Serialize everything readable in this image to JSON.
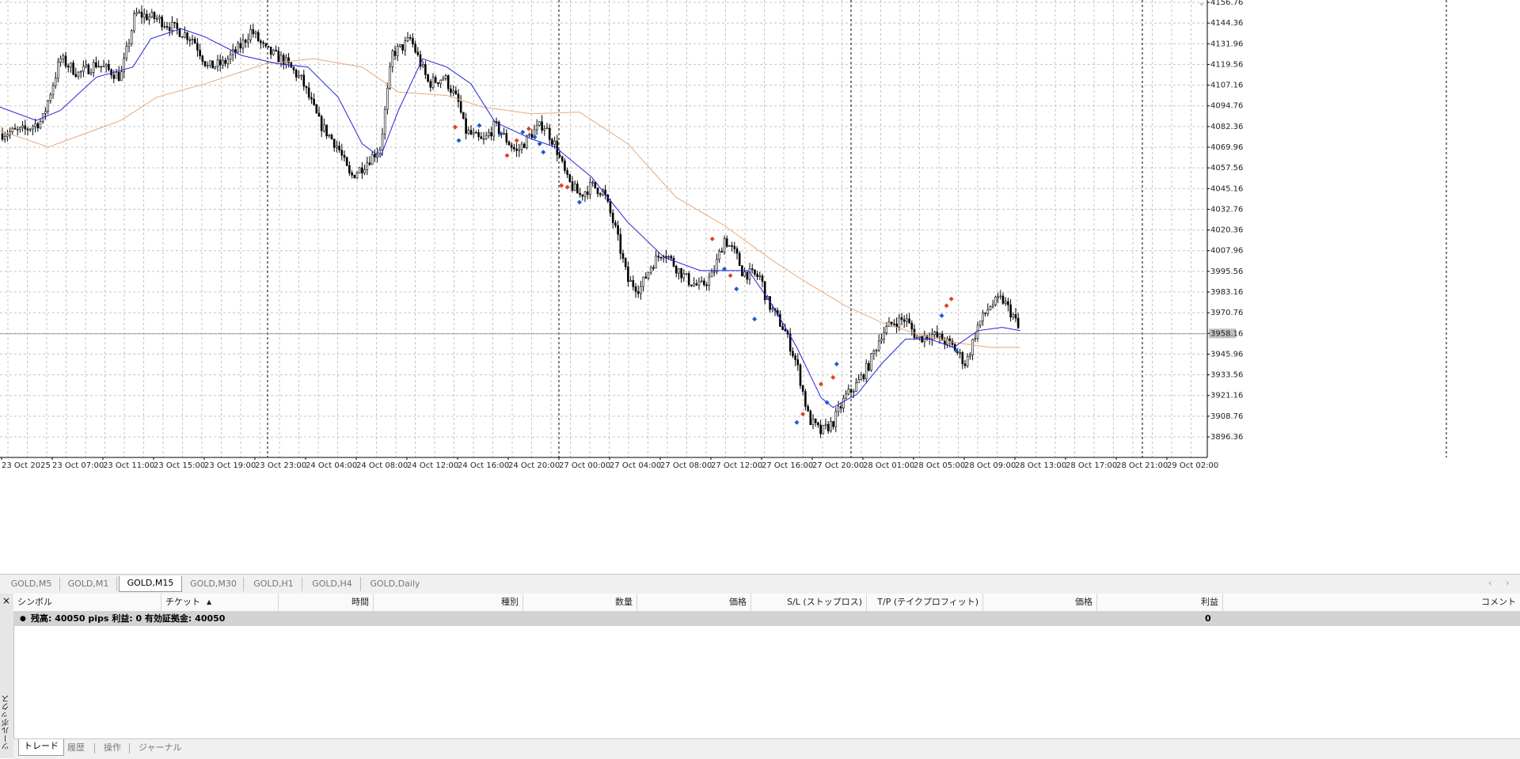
{
  "chart": {
    "symbol": "GOLD",
    "timeframe": "M15",
    "current_price_label": "3958.16",
    "y_axis_labels": [
      "4156.76",
      "4144.36",
      "4131.96",
      "4119.56",
      "4107.16",
      "4094.76",
      "4082.36",
      "4069.96",
      "4057.56",
      "4045.16",
      "4032.76",
      "4020.36",
      "4007.96",
      "3995.56",
      "3983.16",
      "3970.76",
      "3958.16",
      "3945.96",
      "3933.56",
      "3921.16",
      "3908.76",
      "3896.36"
    ],
    "x_axis_labels": [
      "23 Oct 2025",
      "23 Oct 07:00",
      "23 Oct 11:00",
      "23 Oct 15:00",
      "23 Oct 19:00",
      "23 Oct 23:00",
      "24 Oct 04:00",
      "24 Oct 08:00",
      "24 Oct 12:00",
      "24 Oct 16:00",
      "24 Oct 20:00",
      "27 Oct 00:00",
      "27 Oct 04:00",
      "27 Oct 08:00",
      "27 Oct 12:00",
      "27 Oct 16:00",
      "27 Oct 20:00",
      "28 Oct 01:00",
      "28 Oct 05:00",
      "28 Oct 09:00",
      "28 Oct 13:00",
      "28 Oct 17:00",
      "28 Oct 21:00",
      "29 Oct 02:00"
    ],
    "colors": {
      "candle": "#000000",
      "ma_fast": "#2222dd",
      "ma_slow": "#e8a878",
      "grid": "#c4c4c4",
      "buy_marker": "#1e5bcf",
      "sell_marker": "#e04020"
    },
    "price_path": [
      [
        0,
        4078
      ],
      [
        0.02,
        4080
      ],
      [
        0.035,
        4086
      ],
      [
        0.05,
        4123
      ],
      [
        0.065,
        4114
      ],
      [
        0.08,
        4120
      ],
      [
        0.1,
        4112
      ],
      [
        0.112,
        4150
      ],
      [
        0.13,
        4147
      ],
      [
        0.15,
        4139
      ],
      [
        0.16,
        4135
      ],
      [
        0.172,
        4118
      ],
      [
        0.185,
        4120
      ],
      [
        0.2,
        4131
      ],
      [
        0.208,
        4140
      ],
      [
        0.22,
        4128
      ],
      [
        0.235,
        4122
      ],
      [
        0.25,
        4110
      ],
      [
        0.265,
        4084
      ],
      [
        0.28,
        4070
      ],
      [
        0.29,
        4052
      ],
      [
        0.3,
        4058
      ],
      [
        0.315,
        4070
      ],
      [
        0.325,
        4126
      ],
      [
        0.335,
        4131
      ],
      [
        0.34,
        4135
      ],
      [
        0.355,
        4108
      ],
      [
        0.368,
        4112
      ],
      [
        0.38,
        4096
      ],
      [
        0.385,
        4080
      ],
      [
        0.4,
        4073
      ],
      [
        0.41,
        4083
      ],
      [
        0.42,
        4074
      ],
      [
        0.428,
        4067
      ],
      [
        0.44,
        4078
      ],
      [
        0.45,
        4084
      ],
      [
        0.46,
        4071
      ],
      [
        0.47,
        4050
      ],
      [
        0.48,
        4041
      ],
      [
        0.49,
        4047
      ],
      [
        0.5,
        4043
      ],
      [
        0.51,
        4020
      ],
      [
        0.52,
        3990
      ],
      [
        0.53,
        3985
      ],
      [
        0.54,
        4000
      ],
      [
        0.55,
        4008
      ],
      [
        0.56,
        3998
      ],
      [
        0.57,
        3990
      ],
      [
        0.58,
        3986
      ],
      [
        0.59,
        3993
      ],
      [
        0.6,
        4015
      ],
      [
        0.61,
        4005
      ],
      [
        0.615,
        3995
      ],
      [
        0.63,
        3992
      ],
      [
        0.635,
        3978
      ],
      [
        0.65,
        3960
      ],
      [
        0.66,
        3940
      ],
      [
        0.67,
        3907
      ],
      [
        0.68,
        3899
      ],
      [
        0.69,
        3905
      ],
      [
        0.7,
        3920
      ],
      [
        0.71,
        3928
      ],
      [
        0.72,
        3940
      ],
      [
        0.73,
        3958
      ],
      [
        0.74,
        3965
      ],
      [
        0.75,
        3967
      ],
      [
        0.76,
        3955
      ],
      [
        0.77,
        3958
      ],
      [
        0.78,
        3955
      ],
      [
        0.79,
        3950
      ],
      [
        0.8,
        3940
      ],
      [
        0.81,
        3963
      ],
      [
        0.82,
        3975
      ],
      [
        0.83,
        3979
      ],
      [
        0.84,
        3968
      ],
      [
        0.845,
        3958
      ]
    ],
    "ma_fast_path": [
      [
        0,
        4094
      ],
      [
        0.03,
        4086
      ],
      [
        0.05,
        4092
      ],
      [
        0.08,
        4112
      ],
      [
        0.11,
        4118
      ],
      [
        0.125,
        4135
      ],
      [
        0.15,
        4141
      ],
      [
        0.17,
        4136
      ],
      [
        0.2,
        4125
      ],
      [
        0.23,
        4120
      ],
      [
        0.255,
        4118
      ],
      [
        0.28,
        4100
      ],
      [
        0.3,
        4072
      ],
      [
        0.315,
        4064
      ],
      [
        0.33,
        4092
      ],
      [
        0.35,
        4123
      ],
      [
        0.37,
        4118
      ],
      [
        0.39,
        4108
      ],
      [
        0.41,
        4085
      ],
      [
        0.44,
        4075
      ],
      [
        0.46,
        4070
      ],
      [
        0.49,
        4052
      ],
      [
        0.52,
        4025
      ],
      [
        0.55,
        4004
      ],
      [
        0.58,
        3996
      ],
      [
        0.6,
        3996
      ],
      [
        0.62,
        3996
      ],
      [
        0.64,
        3975
      ],
      [
        0.66,
        3950
      ],
      [
        0.68,
        3920
      ],
      [
        0.69,
        3914
      ],
      [
        0.71,
        3922
      ],
      [
        0.73,
        3940
      ],
      [
        0.75,
        3955
      ],
      [
        0.77,
        3955
      ],
      [
        0.79,
        3950
      ],
      [
        0.81,
        3960
      ],
      [
        0.83,
        3962
      ],
      [
        0.845,
        3960
      ]
    ],
    "ma_slow_path": [
      [
        0,
        4080
      ],
      [
        0.04,
        4070
      ],
      [
        0.07,
        4078
      ],
      [
        0.1,
        4086
      ],
      [
        0.13,
        4100
      ],
      [
        0.17,
        4108
      ],
      [
        0.22,
        4120
      ],
      [
        0.26,
        4123
      ],
      [
        0.3,
        4118
      ],
      [
        0.33,
        4103
      ],
      [
        0.37,
        4101
      ],
      [
        0.4,
        4094
      ],
      [
        0.44,
        4090
      ],
      [
        0.48,
        4091
      ],
      [
        0.52,
        4072
      ],
      [
        0.56,
        4040
      ],
      [
        0.6,
        4023
      ],
      [
        0.64,
        4002
      ],
      [
        0.67,
        3988
      ],
      [
        0.7,
        3975
      ],
      [
        0.73,
        3965
      ],
      [
        0.76,
        3958
      ],
      [
        0.79,
        3953
      ],
      [
        0.82,
        3950
      ],
      [
        0.845,
        3950
      ]
    ],
    "trade_markers": [
      {
        "x": 0.377,
        "p": 4082,
        "t": "sell"
      },
      {
        "x": 0.38,
        "p": 4074,
        "t": "buy"
      },
      {
        "x": 0.397,
        "p": 4083,
        "t": "buy"
      },
      {
        "x": 0.415,
        "p": 4078,
        "t": "buy"
      },
      {
        "x": 0.42,
        "p": 4065,
        "t": "sell"
      },
      {
        "x": 0.428,
        "p": 4074,
        "t": "sell"
      },
      {
        "x": 0.433,
        "p": 4079,
        "t": "buy"
      },
      {
        "x": 0.438,
        "p": 4081,
        "t": "sell"
      },
      {
        "x": 0.443,
        "p": 4076,
        "t": "buy"
      },
      {
        "x": 0.447,
        "p": 4072,
        "t": "buy"
      },
      {
        "x": 0.45,
        "p": 4067,
        "t": "buy"
      },
      {
        "x": 0.465,
        "p": 4047,
        "t": "sell"
      },
      {
        "x": 0.47,
        "p": 4046,
        "t": "sell"
      },
      {
        "x": 0.48,
        "p": 4037,
        "t": "buy"
      },
      {
        "x": 0.59,
        "p": 4015,
        "t": "sell"
      },
      {
        "x": 0.6,
        "p": 3997,
        "t": "buy"
      },
      {
        "x": 0.605,
        "p": 3993,
        "t": "sell"
      },
      {
        "x": 0.61,
        "p": 3985,
        "t": "buy"
      },
      {
        "x": 0.625,
        "p": 3967,
        "t": "buy"
      },
      {
        "x": 0.66,
        "p": 3905,
        "t": "buy"
      },
      {
        "x": 0.665,
        "p": 3910,
        "t": "sell"
      },
      {
        "x": 0.68,
        "p": 3928,
        "t": "sell"
      },
      {
        "x": 0.685,
        "p": 3917,
        "t": "buy"
      },
      {
        "x": 0.69,
        "p": 3932,
        "t": "sell"
      },
      {
        "x": 0.693,
        "p": 3940,
        "t": "buy"
      },
      {
        "x": 0.78,
        "p": 3969,
        "t": "buy"
      },
      {
        "x": 0.784,
        "p": 3975,
        "t": "sell"
      },
      {
        "x": 0.788,
        "p": 3979,
        "t": "sell"
      },
      {
        "x": 0.792,
        "p": 3948,
        "t": "buy"
      }
    ]
  },
  "timeframe_tabs": [
    {
      "label": "GOLD,M5",
      "active": false
    },
    {
      "label": "GOLD,M1",
      "active": false
    },
    {
      "label": "GOLD,M15",
      "active": true
    },
    {
      "label": "GOLD,M30",
      "active": false
    },
    {
      "label": "GOLD,H1",
      "active": false
    },
    {
      "label": "GOLD,H4",
      "active": false
    },
    {
      "label": "GOLD,Daily",
      "active": false
    }
  ],
  "toolbox": {
    "title": "ツールボックス",
    "close_symbol": "×",
    "columns": [
      "シンボル",
      "チケット",
      "時間",
      "種別",
      "数量",
      "価格",
      "S/L (ストップロス)",
      "T/P (テイクプロフィット)",
      "価格",
      "利益",
      "コメント"
    ],
    "sort_indicator": "▲",
    "summary_text": "残高: 40050 pips   利益: 0   有効証拠金: 40050",
    "summary_profit": "0",
    "tabs": [
      {
        "label": "トレード",
        "active": true
      },
      {
        "label": "履歴",
        "active": false
      },
      {
        "label": "操作",
        "active": false
      },
      {
        "label": "ジャーナル",
        "active": false
      }
    ]
  }
}
